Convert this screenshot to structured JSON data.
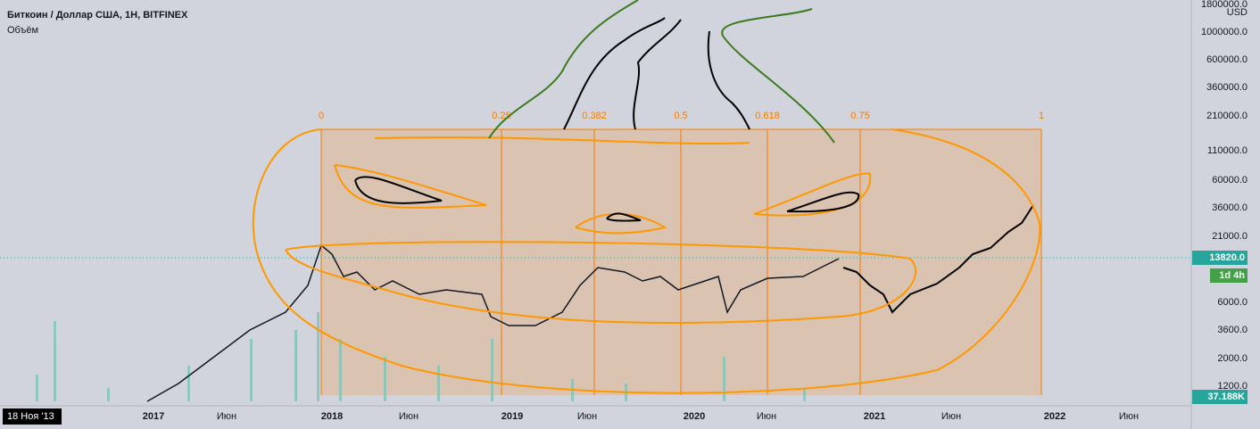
{
  "header": {
    "title": "Биткоин / Доллар США, 1Н, BITFINEX",
    "subtitle": "Объём"
  },
  "fib_levels": [
    "0",
    "0.25",
    "0.382",
    "0.5",
    "0.618",
    "0.75",
    "1"
  ],
  "price_axis": {
    "unit": "USD",
    "labels": [
      "1800000.0",
      "1000000.0",
      "600000.0",
      "360000.0",
      "210000.0",
      "110000.0",
      "60000.0",
      "36000.0",
      "21000.0",
      "6000.0",
      "3600.0",
      "2000.0",
      "1200.0"
    ],
    "last_price": "13820.0",
    "countdown": "1d 4h",
    "volume": "37.188K"
  },
  "time_axis": {
    "start_date": "18 Ноя '13",
    "labels": [
      "2017",
      "Июн",
      "2018",
      "Июн",
      "2019",
      "Июн",
      "2020",
      "Июн",
      "2021",
      "Июн",
      "2022",
      "Июн"
    ]
  }
}
